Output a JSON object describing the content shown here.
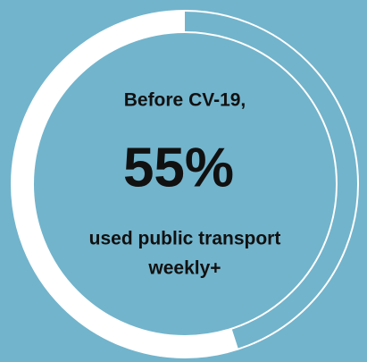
{
  "chart_data": {
    "type": "donut",
    "title": "Before CV-19,",
    "values": [
      55
    ],
    "value_labels": [
      "55%"
    ],
    "color": "#ffffff",
    "annotations": [
      "used public transport",
      "weekly+"
    ]
  }
}
